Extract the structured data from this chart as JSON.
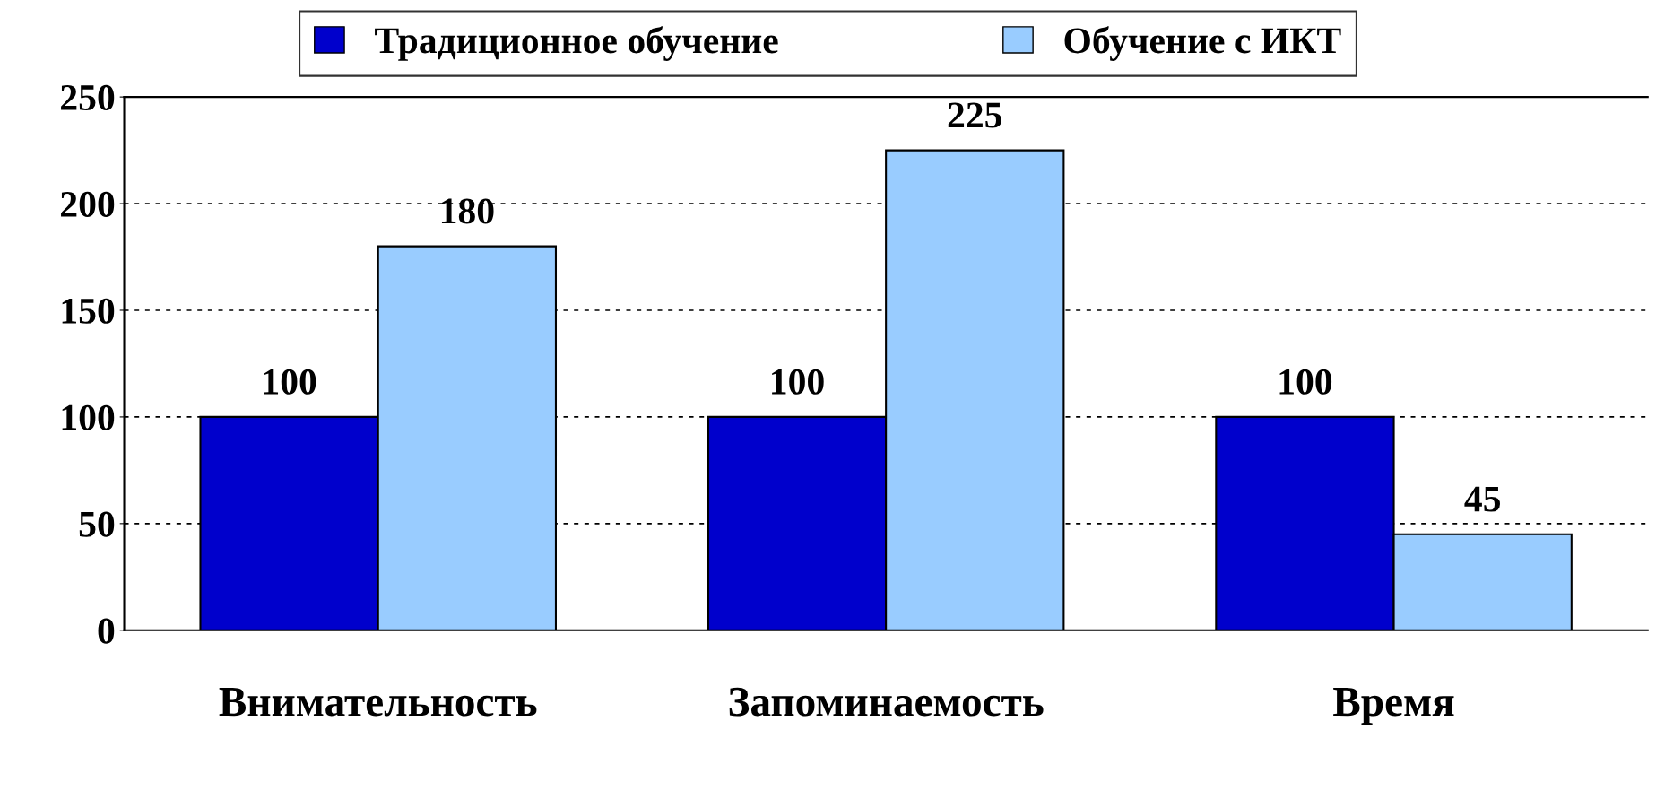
{
  "chart_data": {
    "type": "bar",
    "categories": [
      "Внимательность",
      "Запоминаемость",
      "Время"
    ],
    "series": [
      {
        "name": "Традиционное обучение",
        "color": "#0000cc",
        "values": [
          100,
          100,
          100
        ]
      },
      {
        "name": "Обучение с ИКТ",
        "color": "#99ccff",
        "values": [
          180,
          225,
          45
        ]
      }
    ],
    "ylim": [
      0,
      250
    ],
    "yticks": [
      0,
      50,
      100,
      150,
      200,
      250
    ],
    "grid": "y",
    "legend": "top",
    "data_labels": true
  }
}
